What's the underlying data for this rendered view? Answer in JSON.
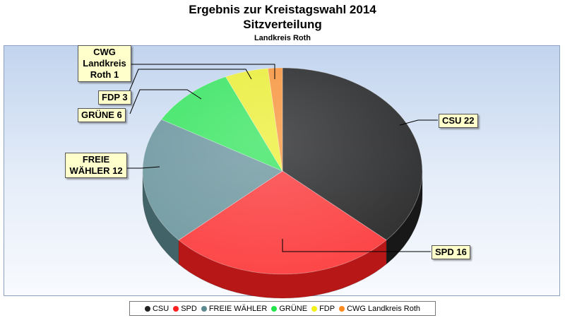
{
  "chart_data": {
    "type": "pie",
    "title": "Ergebnis zur Kreistagswahl 2014",
    "subtitle": "Sitzverteilung",
    "caption": "Landkreis Roth",
    "labels": [
      "CSU",
      "SPD",
      "FREIE WÄHLER",
      "GRÜNE",
      "FDP",
      "CWG Landkreis Roth"
    ],
    "values": [
      22,
      16,
      12,
      6,
      3,
      1
    ],
    "colors": [
      "#222222",
      "#ff2020",
      "#5b8a91",
      "#22e64a",
      "#f2f21a",
      "#ff8a1f"
    ],
    "data_labels": [
      "CSU 22",
      "SPD 16",
      "FREIE WÄHLER 12",
      "GRÜNE 6",
      "FDP 3",
      "CWG Landkreis Roth 1"
    ],
    "legend_position": "bottom"
  },
  "callouts": {
    "csu": "CSU 22",
    "spd": "SPD 16",
    "fw1": "FREIE",
    "fw2": "WÄHLER 12",
    "gruene": "GRÜNE 6",
    "fdp": "FDP 3",
    "cwg1": "CWG",
    "cwg2": "Landkreis",
    "cwg3": "Roth 1"
  }
}
